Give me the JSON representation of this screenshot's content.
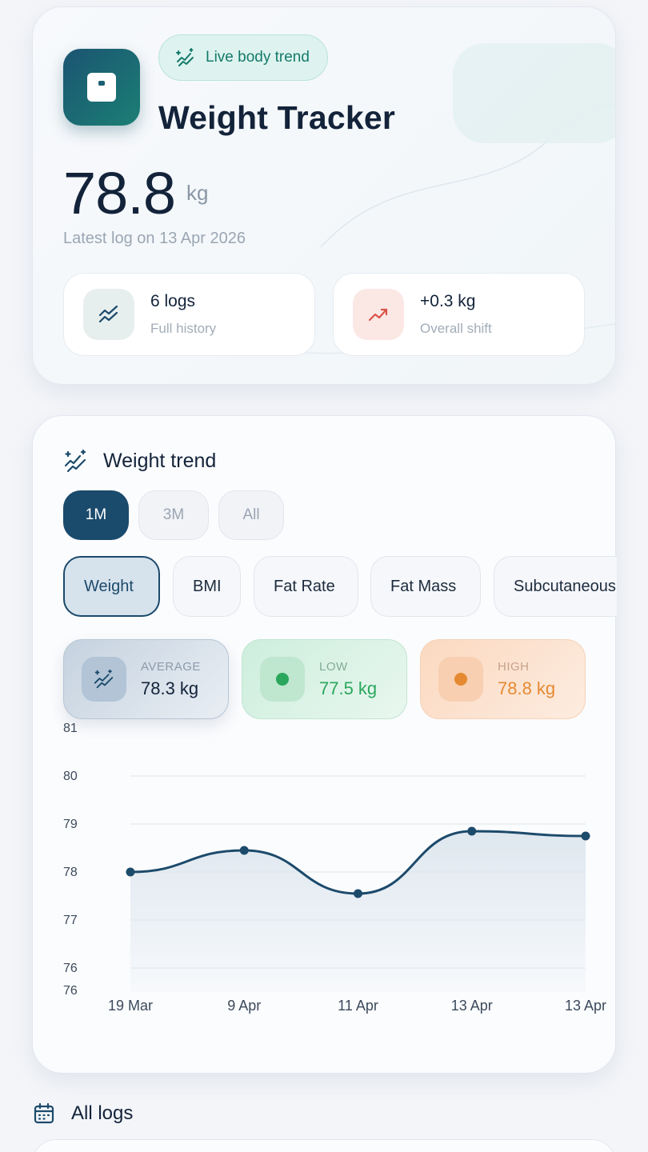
{
  "hero": {
    "badge": "Live body trend",
    "title": "Weight Tracker",
    "current_weight": "78.8",
    "unit": "kg",
    "latest_log": "Latest log on 13 Apr 2026",
    "stats": [
      {
        "main": "6 logs",
        "sub": "Full history",
        "icon": "trend-lines-icon"
      },
      {
        "main": "+0.3 kg",
        "sub": "Overall shift",
        "icon": "trend-up-icon"
      }
    ]
  },
  "trend": {
    "title": "Weight trend",
    "ranges": [
      "1M",
      "3M",
      "All"
    ],
    "active_range": "1M",
    "metrics": [
      "Weight",
      "BMI",
      "Fat Rate",
      "Fat Mass",
      "Subcutaneous Fat"
    ],
    "active_metric": "Weight",
    "summary": {
      "average": {
        "label": "AVERAGE",
        "value": "78.3 kg"
      },
      "low": {
        "label": "LOW",
        "value": "77.5 kg"
      },
      "high": {
        "label": "HIGH",
        "value": "78.8 kg"
      }
    }
  },
  "chart_data": {
    "type": "area",
    "categories": [
      "19 Mar",
      "9 Apr",
      "11 Apr",
      "13 Apr",
      "13 Apr"
    ],
    "series": [
      {
        "values": [
          78.0,
          78.45,
          77.55,
          78.85,
          78.75
        ]
      }
    ],
    "y_tick_labels": [
      "76",
      "76",
      "77",
      "78",
      "79",
      "80",
      "81"
    ],
    "ylim": [
      75.5,
      81
    ],
    "line_color": "#1c4a6b",
    "fill_color": "#dde6ee",
    "grid": true
  },
  "logs_section": {
    "title": "All logs"
  },
  "colors": {
    "accent": "#1a4a6c",
    "teal": "#147a6b",
    "low": "#2aa75c",
    "high": "#e58a32"
  }
}
